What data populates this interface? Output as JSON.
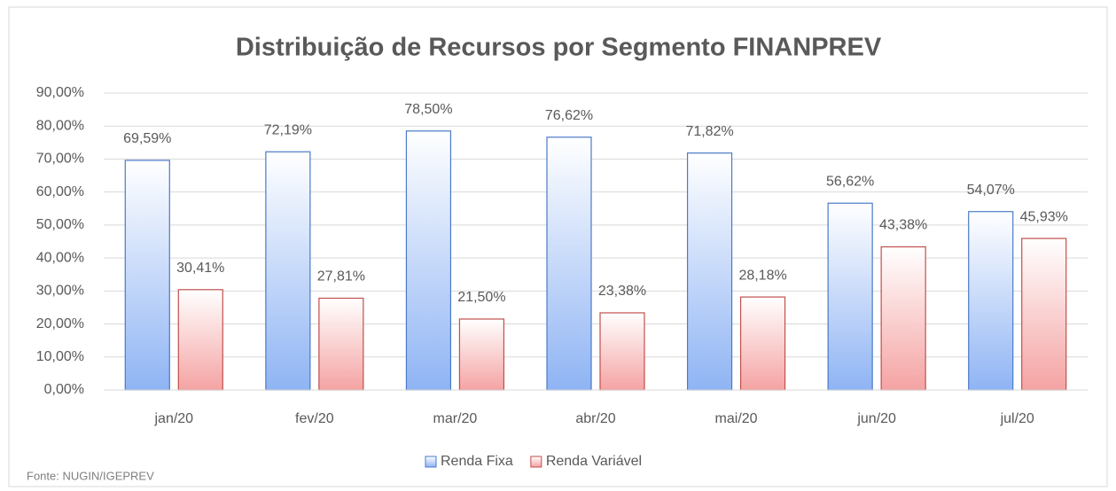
{
  "chart_data": {
    "type": "bar",
    "title": "Distribuição  de Recursos por Segmento  FINANPREV",
    "categories": [
      "jan/20",
      "fev/20",
      "mar/20",
      "abr/20",
      "mai/20",
      "jun/20",
      "jul/20"
    ],
    "series": [
      {
        "name": "Renda Fixa",
        "color": "#8fb4f4",
        "values": [
          69.59,
          72.19,
          78.5,
          76.62,
          71.82,
          56.62,
          54.07
        ],
        "value_labels": [
          "69,59%",
          "72,19%",
          "78,50%",
          "76,62%",
          "71,82%",
          "56,62%",
          "54,07%"
        ]
      },
      {
        "name": "Renda Variável",
        "color": "#f5a3a3",
        "values": [
          30.41,
          27.81,
          21.5,
          23.38,
          28.18,
          43.38,
          45.93
        ],
        "value_labels": [
          "30,41%",
          "27,81%",
          "21,50%",
          "23,38%",
          "28,18%",
          "43,38%",
          "45,93%"
        ]
      }
    ],
    "ylim": [
      0,
      90
    ],
    "yticks": [
      {
        "value": 0,
        "label": "0,00%"
      },
      {
        "value": 10,
        "label": "10,00%"
      },
      {
        "value": 20,
        "label": "20,00%"
      },
      {
        "value": 30,
        "label": "30,00%"
      },
      {
        "value": 40,
        "label": "40,00%"
      },
      {
        "value": 50,
        "label": "50,00%"
      },
      {
        "value": 60,
        "label": "60,00%"
      },
      {
        "value": 70,
        "label": "70,00%"
      },
      {
        "value": 80,
        "label": "80,00%"
      },
      {
        "value": 90,
        "label": "90,00%"
      }
    ],
    "grid": true,
    "legend": "bottom",
    "source": "Fonte: NUGIN/IGEPREV"
  }
}
